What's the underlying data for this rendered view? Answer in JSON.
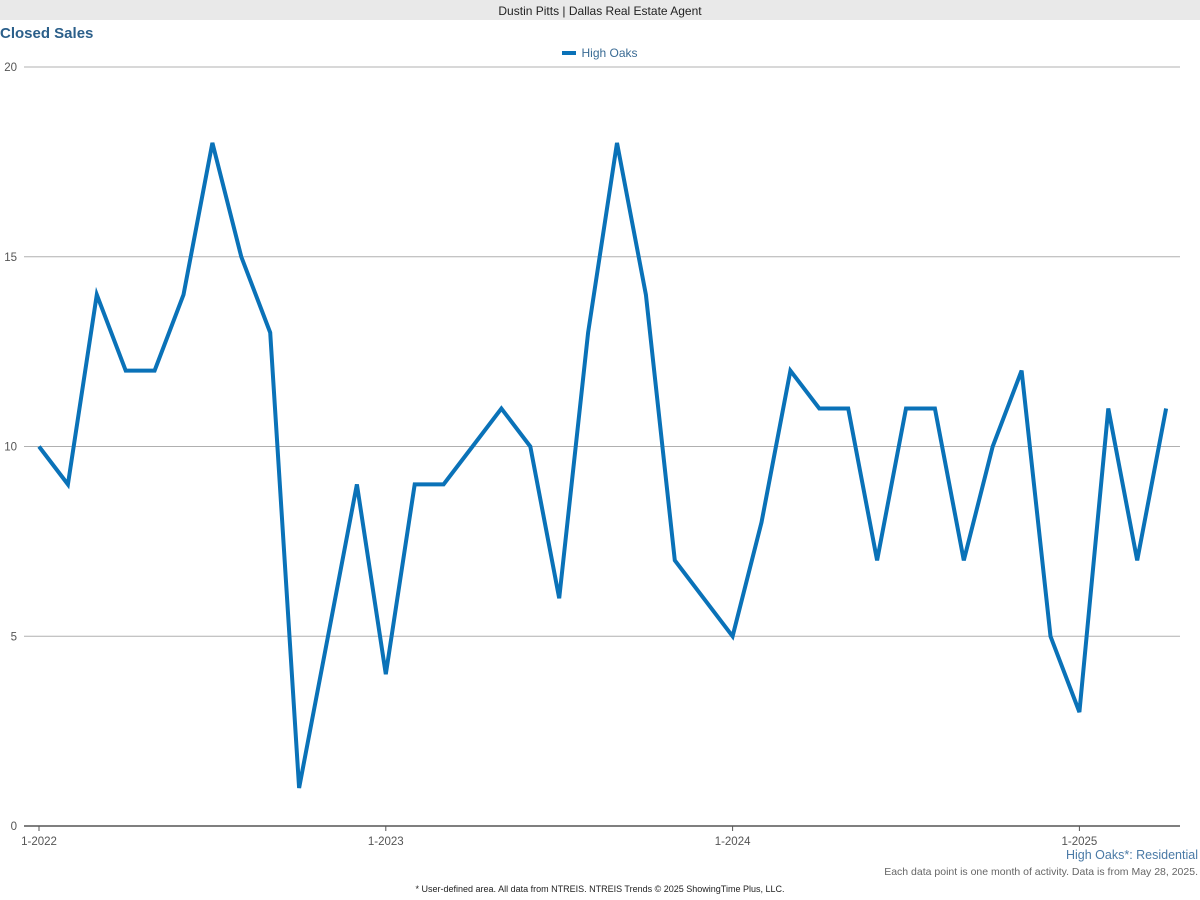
{
  "header": {
    "title": "Dustin Pitts | Dallas Real Estate Agent"
  },
  "footnotes": {
    "area_label": "High Oaks*: Residential",
    "data_note": "Each data point is one month of activity. Data is from May 28, 2025.",
    "source": "* User-defined area. All data from NTREIS. NTREIS Trends © 2025 ShowingTime Plus, LLC."
  },
  "colors": {
    "series": "#0a72b8",
    "title": "#2b5f8a",
    "grid": "#b0b0b0"
  },
  "chart_data": {
    "type": "line",
    "title": "Closed Sales",
    "xlabel": "",
    "ylabel": "",
    "ylim": [
      0,
      20
    ],
    "yticks": [
      0,
      5,
      10,
      15,
      20
    ],
    "xticks": [
      {
        "label": "1-2022",
        "index": 0
      },
      {
        "label": "1-2023",
        "index": 12
      },
      {
        "label": "1-2024",
        "index": 24
      },
      {
        "label": "1-2025",
        "index": 36
      }
    ],
    "grid": true,
    "legend": "top-center",
    "x": [
      "1-2022",
      "2-2022",
      "3-2022",
      "4-2022",
      "5-2022",
      "6-2022",
      "7-2022",
      "8-2022",
      "9-2022",
      "10-2022",
      "11-2022",
      "12-2022",
      "1-2023",
      "2-2023",
      "3-2023",
      "4-2023",
      "5-2023",
      "6-2023",
      "7-2023",
      "8-2023",
      "9-2023",
      "10-2023",
      "11-2023",
      "12-2023",
      "1-2024",
      "2-2024",
      "3-2024",
      "4-2024",
      "5-2024",
      "6-2024",
      "7-2024",
      "8-2024",
      "9-2024",
      "10-2024",
      "11-2024",
      "12-2024",
      "1-2025",
      "2-2025",
      "3-2025",
      "4-2025"
    ],
    "series": [
      {
        "name": "High Oaks",
        "values": [
          10,
          9,
          14,
          12,
          12,
          14,
          18,
          15,
          13,
          1,
          5,
          9,
          4,
          9,
          9,
          10,
          11,
          10,
          6,
          13,
          18,
          14,
          7,
          6,
          5,
          8,
          12,
          11,
          11,
          7,
          11,
          11,
          7,
          10,
          12,
          5,
          3,
          11,
          7,
          11
        ]
      }
    ]
  }
}
